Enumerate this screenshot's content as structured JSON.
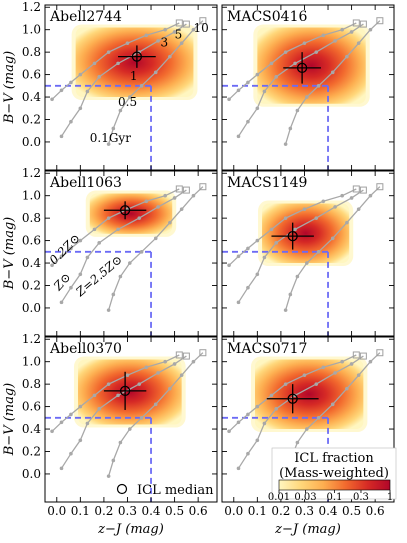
{
  "chart_data": {
    "type": "heatmap",
    "xlabel": "z−J (mag)",
    "ylabel": "B−V (mag)",
    "xlim": [
      -0.05,
      0.68
    ],
    "ylim": [
      -0.25,
      1.22
    ],
    "x_ticks": [
      0.0,
      0.1,
      0.2,
      0.3,
      0.4,
      0.5,
      0.6
    ],
    "x_tick_labels": [
      "0.0",
      "0.1",
      "0.2",
      "0.3",
      "0.4",
      "0.5",
      "0.6"
    ],
    "y_ticks": [
      0.0,
      0.2,
      0.4,
      0.6,
      0.8,
      1.0,
      1.2
    ],
    "y_tick_labels": [
      "0.0",
      "0.2",
      "0.4",
      "0.6",
      "0.8",
      "1.0",
      "1.2"
    ],
    "selection_box": {
      "x_max": 0.4,
      "y_min": 0.5
    },
    "panels": [
      {
        "name": "Abell2744",
        "median": {
          "x": 0.34,
          "y": 0.76,
          "xerr": 0.08,
          "yerr": 0.1
        },
        "density": {
          "x0": 0.08,
          "x1": 0.58,
          "y0": 0.4,
          "y1": 1.02,
          "cx": 0.32,
          "cy": 0.74
        }
      },
      {
        "name": "MACS0416",
        "median": {
          "x": 0.29,
          "y": 0.66,
          "xerr": 0.08,
          "yerr": 0.14
        },
        "density": {
          "x0": 0.1,
          "x1": 0.56,
          "y0": 0.34,
          "y1": 1.02,
          "cx": 0.3,
          "cy": 0.7
        }
      },
      {
        "name": "Abell1063",
        "median": {
          "x": 0.29,
          "y": 0.87,
          "xerr": 0.09,
          "yerr": 0.08
        },
        "density": {
          "x0": 0.14,
          "x1": 0.49,
          "y0": 0.66,
          "y1": 1.02,
          "cx": 0.3,
          "cy": 0.88
        }
      },
      {
        "name": "MACS1149",
        "median": {
          "x": 0.25,
          "y": 0.64,
          "xerr": 0.09,
          "yerr": 0.12
        },
        "density": {
          "x0": 0.12,
          "x1": 0.49,
          "y0": 0.4,
          "y1": 0.93,
          "cx": 0.26,
          "cy": 0.64
        }
      },
      {
        "name": "Abell0370",
        "median": {
          "x": 0.29,
          "y": 0.74,
          "xerr": 0.09,
          "yerr": 0.17
        },
        "density": {
          "x0": 0.09,
          "x1": 0.53,
          "y0": 0.44,
          "y1": 1.02,
          "cx": 0.3,
          "cy": 0.76
        }
      },
      {
        "name": "MACS0717",
        "median": {
          "x": 0.25,
          "y": 0.67,
          "xerr": 0.11,
          "yerr": 0.13
        },
        "density": {
          "x0": 0.09,
          "x1": 0.55,
          "y0": 0.4,
          "y1": 1.02,
          "cx": 0.26,
          "cy": 0.7
        }
      }
    ],
    "tracks": [
      {
        "name": "0.2Z⊙",
        "x": [
          -0.02,
          0.02,
          0.06,
          0.1,
          0.16,
          0.22,
          0.3,
          0.38,
          0.46,
          0.52
        ],
        "y": [
          0.38,
          0.46,
          0.53,
          0.6,
          0.7,
          0.8,
          0.88,
          0.95,
          1.0,
          1.06
        ]
      },
      {
        "name": "Z⊙",
        "x": [
          0.02,
          0.06,
          0.1,
          0.13,
          0.18,
          0.26,
          0.35,
          0.43,
          0.5,
          0.55
        ],
        "y": [
          0.05,
          0.18,
          0.3,
          0.45,
          0.58,
          0.7,
          0.8,
          0.9,
          0.98,
          1.05
        ]
      },
      {
        "name": "Z=2.5Z⊙",
        "x": [
          0.22,
          0.24,
          0.27,
          0.31,
          0.36,
          0.42,
          0.48,
          0.53,
          0.58,
          0.62
        ],
        "y": [
          -0.02,
          0.12,
          0.28,
          0.4,
          0.5,
          0.62,
          0.76,
          0.88,
          1.0,
          1.08
        ]
      }
    ],
    "age_labels": [
      {
        "text": "0.1Gyr",
        "x": 0.14,
        "y": 0.0
      },
      {
        "text": "0.5",
        "x": 0.26,
        "y": 0.32
      },
      {
        "text": "1",
        "x": 0.31,
        "y": 0.55
      },
      {
        "text": "3",
        "x": 0.44,
        "y": 0.85
      },
      {
        "text": "5",
        "x": 0.5,
        "y": 0.92
      },
      {
        "text": "10",
        "x": 0.58,
        "y": 0.98
      }
    ],
    "metallicity_labels": [
      {
        "text": "0.2Z⊙",
        "x": -0.01,
        "y": 0.38,
        "angle": -45
      },
      {
        "text": "Z⊙",
        "x": 0.01,
        "y": 0.15,
        "angle": -48
      },
      {
        "text": "Z=2.5Z⊙",
        "x": 0.1,
        "y": 0.1,
        "angle": -40
      }
    ],
    "legend": {
      "marker": "open-circle",
      "label": "ICL median",
      "placement": "bottom-left panel, lower-right"
    },
    "colorbar": {
      "title_line1": "ICL fraction",
      "title_line2": "(Mass-weighted)",
      "ticks": [
        0.01,
        0.03,
        0.1,
        0.3,
        1
      ],
      "tick_labels": [
        "0.01",
        "0.03",
        "0.1",
        "0.3",
        "1"
      ],
      "scale": "log",
      "colors": [
        "#fff6c0",
        "#ffd77a",
        "#fdae50",
        "#f26a2e",
        "#d62a25",
        "#b1062a"
      ],
      "placement": "bottom-right panel, lower-right"
    }
  }
}
